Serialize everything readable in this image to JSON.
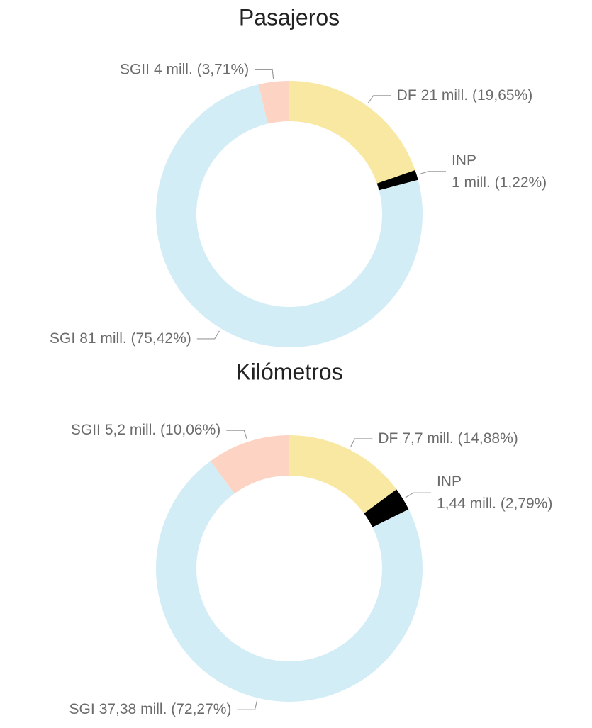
{
  "chart_data": [
    {
      "type": "donut",
      "title": "Pasajeros",
      "categories": [
        "DF",
        "INP",
        "SGI",
        "SGII"
      ],
      "values": [
        19.65,
        1.22,
        75.42,
        3.71
      ],
      "value_labels": [
        "21 mill. (19,65%)",
        "1 mill. (1,22%)",
        "81 mill. (75,42%)",
        "4 mill. (3,71%)"
      ],
      "colors": [
        "#f9e8a2",
        "#000000",
        "#d3edf7",
        "#fdd4c4"
      ]
    },
    {
      "type": "donut",
      "title": "Kilómetros",
      "categories": [
        "DF",
        "INP",
        "SGI",
        "SGII"
      ],
      "values": [
        14.88,
        2.79,
        72.27,
        10.06
      ],
      "value_labels": [
        "7,7 mill. (14,88%)",
        "1,44 mill. (2,79%)",
        "37,38 mill. (72,27%)",
        "5,2 mill. (10,06%)"
      ],
      "colors": [
        "#f9e8a2",
        "#000000",
        "#d3edf7",
        "#fdd4c4"
      ]
    }
  ]
}
